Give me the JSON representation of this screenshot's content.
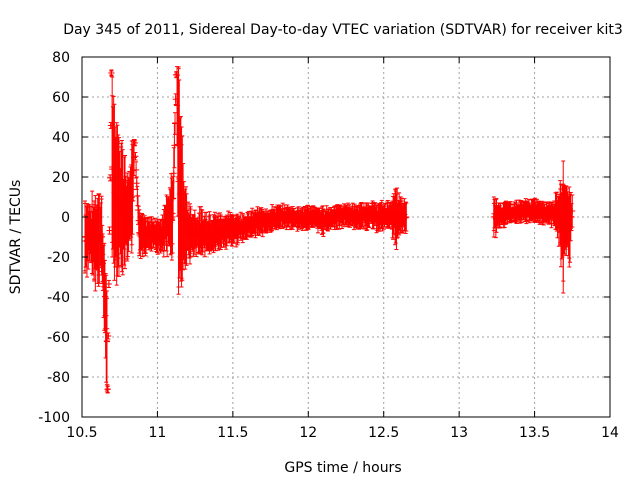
{
  "chart_data": {
    "type": "scatter",
    "title": "Day 345 of 2011, Sidereal Day-to-day VTEC variation (SDTVAR) for receiver kit3",
    "xlabel": "GPS time / hours",
    "ylabel": "SDTVAR / TECUs",
    "xlim": [
      10.5,
      14
    ],
    "ylim": [
      -100,
      80
    ],
    "x_ticks": [
      "10.5",
      "11",
      "11.5",
      "12",
      "12.5",
      "13",
      "13.5",
      "14"
    ],
    "y_ticks": [
      "-100",
      "-80",
      "-60",
      "-40",
      "-20",
      "0",
      "20",
      "40",
      "60",
      "80"
    ],
    "grid": true,
    "marker": "cross with error bars",
    "color": "#ff0000",
    "series": [
      {
        "segments": [
          {
            "x_start": 10.5,
            "x_end": 12.66,
            "note": "continuous"
          },
          {
            "x_start": 13.22,
            "x_end": 13.77,
            "note": "continuous"
          }
        ],
        "points": [
          {
            "x": 10.52,
            "y": -10,
            "err": 18
          },
          {
            "x": 10.55,
            "y": -8,
            "err": 14
          },
          {
            "x": 10.58,
            "y": -12,
            "err": 20
          },
          {
            "x": 10.61,
            "y": -9,
            "err": 20
          },
          {
            "x": 10.63,
            "y": -10,
            "err": 19
          },
          {
            "x": 10.665,
            "y": -62,
            "err": 25
          },
          {
            "x": 10.67,
            "y": -86,
            "err": 2
          },
          {
            "x": 10.695,
            "y": 72,
            "err": 1
          },
          {
            "x": 10.7,
            "y": 25,
            "err": 45
          },
          {
            "x": 10.72,
            "y": 10,
            "err": 35
          },
          {
            "x": 10.74,
            "y": 8,
            "err": 33
          },
          {
            "x": 10.76,
            "y": 5,
            "err": 30
          },
          {
            "x": 10.78,
            "y": 3,
            "err": 27
          },
          {
            "x": 10.8,
            "y": 0,
            "err": 22
          },
          {
            "x": 10.83,
            "y": 10,
            "err": 28
          },
          {
            "x": 10.85,
            "y": 37,
            "err": 1
          },
          {
            "x": 10.88,
            "y": -8,
            "err": 10
          },
          {
            "x": 10.92,
            "y": -10,
            "err": 8
          },
          {
            "x": 10.97,
            "y": -8,
            "err": 7
          },
          {
            "x": 11.02,
            "y": -10,
            "err": 8
          },
          {
            "x": 11.06,
            "y": -3,
            "err": 14
          },
          {
            "x": 11.1,
            "y": 0,
            "err": 18
          },
          {
            "x": 11.125,
            "y": 71,
            "err": 1
          },
          {
            "x": 11.14,
            "y": 20,
            "err": 55
          },
          {
            "x": 11.16,
            "y": 5,
            "err": 40
          },
          {
            "x": 11.18,
            "y": -5,
            "err": 18
          },
          {
            "x": 11.22,
            "y": -8,
            "err": 12
          },
          {
            "x": 11.28,
            "y": -8,
            "err": 10
          },
          {
            "x": 11.35,
            "y": -8,
            "err": 9
          },
          {
            "x": 11.42,
            "y": -7,
            "err": 8
          },
          {
            "x": 11.5,
            "y": -6,
            "err": 7
          },
          {
            "x": 11.57,
            "y": -5,
            "err": 6
          },
          {
            "x": 11.65,
            "y": -3,
            "err": 6
          },
          {
            "x": 11.72,
            "y": -2,
            "err": 6
          },
          {
            "x": 11.8,
            "y": 0,
            "err": 5
          },
          {
            "x": 11.87,
            "y": 0,
            "err": 5
          },
          {
            "x": 11.95,
            "y": -1,
            "err": 5
          },
          {
            "x": 12.02,
            "y": 0,
            "err": 5
          },
          {
            "x": 12.1,
            "y": -2,
            "err": 6
          },
          {
            "x": 12.17,
            "y": 0,
            "err": 5
          },
          {
            "x": 12.25,
            "y": 1,
            "err": 5
          },
          {
            "x": 12.32,
            "y": 0,
            "err": 5
          },
          {
            "x": 12.4,
            "y": 1,
            "err": 6
          },
          {
            "x": 12.47,
            "y": 0,
            "err": 6
          },
          {
            "x": 12.54,
            "y": 1,
            "err": 6
          },
          {
            "x": 12.58,
            "y": 0,
            "err": 13
          },
          {
            "x": 12.62,
            "y": 0,
            "err": 8
          },
          {
            "x": 12.65,
            "y": 0,
            "err": 7
          },
          {
            "x": 13.23,
            "y": 0,
            "err": 10
          },
          {
            "x": 13.27,
            "y": 1,
            "err": 6
          },
          {
            "x": 13.32,
            "y": 2,
            "err": 5
          },
          {
            "x": 13.38,
            "y": 2,
            "err": 5
          },
          {
            "x": 13.45,
            "y": 3,
            "err": 5
          },
          {
            "x": 13.52,
            "y": 3,
            "err": 5
          },
          {
            "x": 13.58,
            "y": 2,
            "err": 5
          },
          {
            "x": 13.63,
            "y": 2,
            "err": 6
          },
          {
            "x": 13.67,
            "y": 0,
            "err": 14
          },
          {
            "x": 13.69,
            "y": -5,
            "err": 33
          },
          {
            "x": 13.71,
            "y": 0,
            "err": 15
          },
          {
            "x": 13.73,
            "y": -5,
            "err": 20
          },
          {
            "x": 13.75,
            "y": 3,
            "err": 8
          }
        ]
      }
    ]
  }
}
